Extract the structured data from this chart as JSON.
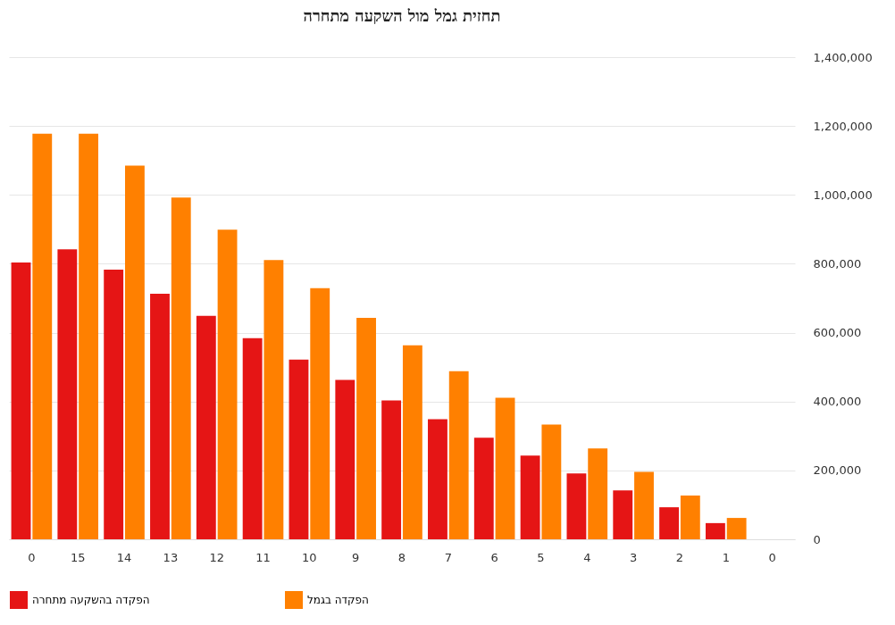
{
  "chart_data": {
    "type": "bar",
    "title": "תחזית גמל מול השקעה מתחרה",
    "categories": [
      "0",
      "15",
      "14",
      "13",
      "12",
      "11",
      "10",
      "9",
      "8",
      "7",
      "6",
      "5",
      "4",
      "3",
      "2",
      "1",
      "0"
    ],
    "series": [
      {
        "name": "הפקדה בהשקעה מתחרה",
        "color": "#e51515",
        "values": [
          804000,
          842000,
          783000,
          713000,
          649000,
          584000,
          522000,
          463000,
          403000,
          349000,
          295000,
          243000,
          191000,
          142000,
          93000,
          47000,
          0
        ]
      },
      {
        "name": "הפקדה בגמל",
        "color": "#ff8000",
        "values": [
          1178000,
          1178000,
          1085000,
          992000,
          899000,
          811000,
          729000,
          643000,
          563000,
          488000,
          411000,
          333000,
          264000,
          196000,
          127000,
          62000,
          0
        ]
      }
    ],
    "ylim": [
      0,
      1400000
    ],
    "yticks": [
      0,
      {
        "value": 200000,
        "label": "200,000"
      },
      {
        "value": 400000,
        "label": "400,000"
      },
      {
        "value": 600000,
        "label": "600,000"
      },
      {
        "value": 800000,
        "label": "800,000"
      },
      {
        "value": 1000000,
        "label": "1,000,000"
      },
      {
        "value": 1200000,
        "label": "1,200,000"
      },
      {
        "value": 1400000,
        "label": "1,400,000"
      }
    ],
    "grid": "y",
    "legend": "bottom"
  }
}
